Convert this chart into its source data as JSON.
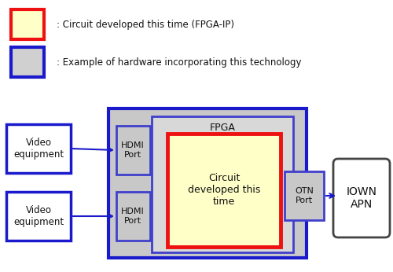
{
  "bg_color": "#ffffff",
  "legend_fpgaip_fill": "#ffffc8",
  "legend_fpgaip_edge": "#ee1111",
  "legend_hw_fill": "#d0d0d0",
  "legend_hw_edge": "#1a1acc",
  "legend_fpgaip_text": ": Circuit developed this time (FPGA-IP)",
  "legend_hw_text": ": Example of hardware incorporating this technology",
  "fpga_outer_fill": "#c8c8c8",
  "fpga_outer_edge": "#1a1acc",
  "fpga_inner_fill": "#d8d8d8",
  "fpga_inner_edge": "#4040cc",
  "circuit_fill": "#ffffc8",
  "circuit_edge": "#ee1111",
  "video_fill": "#ffffff",
  "video_edge": "#1a1acc",
  "hdmi_fill": "#c8c8c8",
  "hdmi_edge": "#4040cc",
  "otn_fill": "#c8c8c8",
  "otn_edge": "#4040cc",
  "iown_fill": "#ffffff",
  "iown_edge": "#444444",
  "arrow_color": "#1a1acc",
  "font_color": "#111111",
  "fpga_label": "FPGA",
  "circuit_label": "Circuit\ndeveloped this\ntime",
  "video1_label": "Video\nequipment",
  "video2_label": "Video\nequipment",
  "hdmi1_label": "HDMI\nPort",
  "hdmi2_label": "HDMI\nPort",
  "otn_label": "OTN\nPort",
  "iown_label": "IOWN\nAPN"
}
